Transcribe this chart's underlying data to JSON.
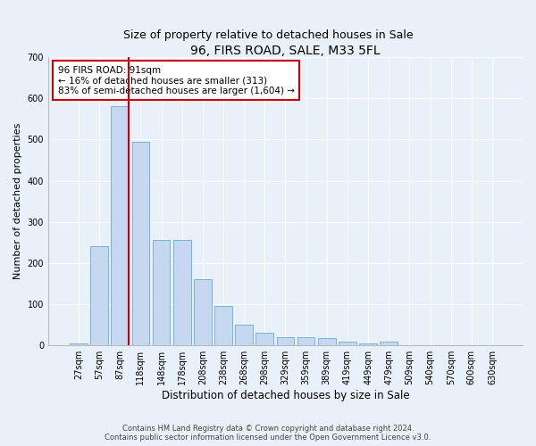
{
  "title": "96, FIRS ROAD, SALE, M33 5FL",
  "subtitle": "Size of property relative to detached houses in Sale",
  "xlabel": "Distribution of detached houses by size in Sale",
  "ylabel": "Number of detached properties",
  "categories": [
    "27sqm",
    "57sqm",
    "87sqm",
    "118sqm",
    "148sqm",
    "178sqm",
    "208sqm",
    "238sqm",
    "268sqm",
    "298sqm",
    "329sqm",
    "359sqm",
    "389sqm",
    "419sqm",
    "449sqm",
    "479sqm",
    "509sqm",
    "540sqm",
    "570sqm",
    "600sqm",
    "630sqm"
  ],
  "values": [
    5,
    240,
    580,
    495,
    255,
    255,
    160,
    95,
    50,
    30,
    20,
    20,
    18,
    10,
    5,
    10,
    0,
    0,
    0,
    0,
    0
  ],
  "bar_color": "#c5d8f0",
  "bar_edge_color": "#6aaad4",
  "background_color": "#e8f0fa",
  "grid_color": "#ffffff",
  "vline_color": "#cc0000",
  "annotation_text": "96 FIRS ROAD: 91sqm\n← 16% of detached houses are smaller (313)\n83% of semi-detached houses are larger (1,604) →",
  "annotation_box_color": "#ffffff",
  "annotation_box_edge": "#cc0000",
  "ylim": [
    0,
    700
  ],
  "yticks": [
    0,
    100,
    200,
    300,
    400,
    500,
    600,
    700
  ],
  "footer": "Contains HM Land Registry data © Crown copyright and database right 2024.\nContains public sector information licensed under the Open Government Licence v3.0.",
  "title_fontsize": 10,
  "subtitle_fontsize": 9,
  "xlabel_fontsize": 8.5,
  "ylabel_fontsize": 8,
  "tick_fontsize": 7,
  "annotation_fontsize": 7.5,
  "footer_fontsize": 6
}
